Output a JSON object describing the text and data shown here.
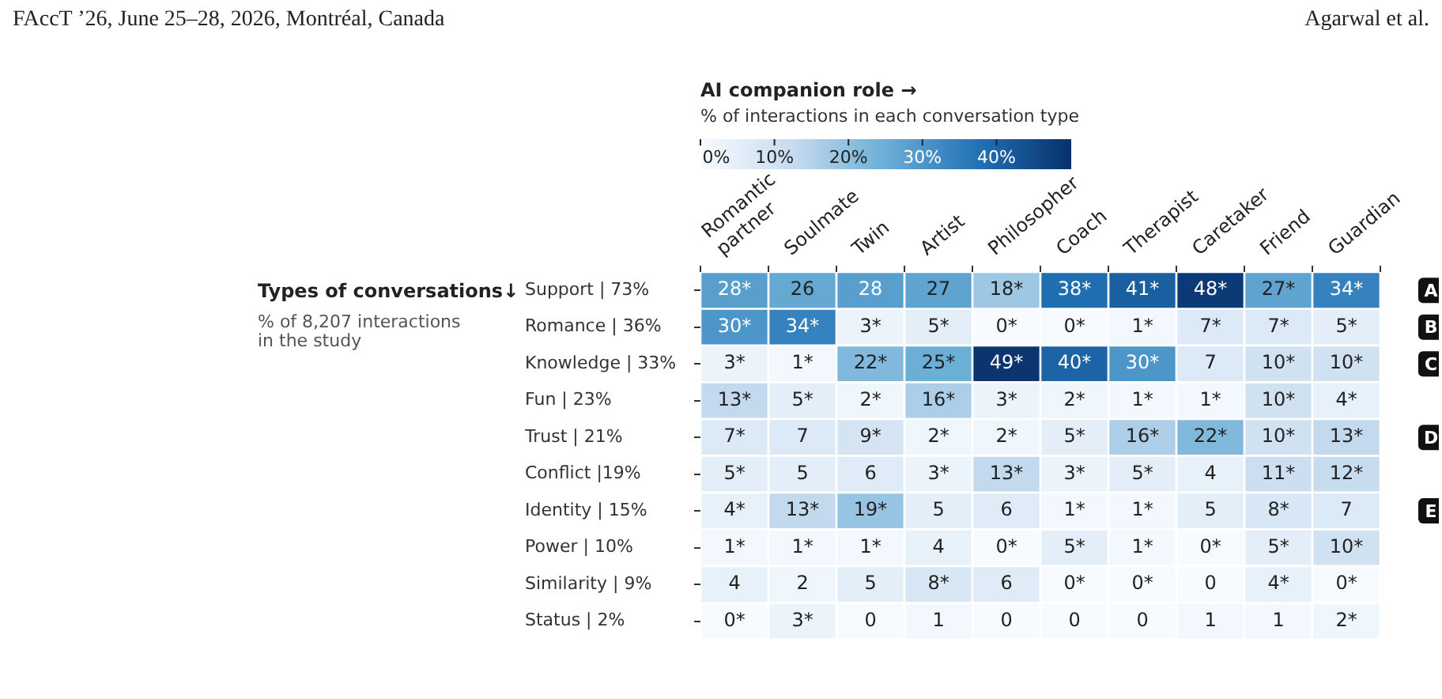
{
  "chart_data": {
    "type": "heatmap",
    "title": "AI companion role →",
    "clabel": "% of interactions in each conversation type",
    "ylabel": "Types of conversations↓",
    "annotations": [
      "FAccT ’26, June 25–28, 2026, Montréal, Canada",
      "Agarwal et al.",
      "% of 8,207 interactions in the study",
      "A",
      "B",
      "C",
      "D",
      "E"
    ],
    "categories": [
      "Romantic partner",
      "Soulmate",
      "Twin",
      "Artist",
      "Philosopher",
      "Coach",
      "Therapist",
      "Caretaker",
      "Friend",
      "Guardian"
    ],
    "y_categories": [
      "Support | 73%",
      "Romance | 36%",
      "Knowledge | 33%",
      "Fun | 23%",
      "Trust | 21%",
      "Conflict |19%",
      "Identity | 15%",
      "Power | 10%",
      "Similarity | 9%",
      "Status | 2%"
    ],
    "cells": [
      [
        28,
        26,
        28,
        27,
        18,
        38,
        41,
        48,
        27,
        34
      ],
      [
        30,
        34,
        3,
        5,
        0,
        0,
        1,
        7,
        7,
        5
      ],
      [
        3,
        1,
        22,
        25,
        49,
        40,
        30,
        7,
        10,
        10
      ],
      [
        13,
        5,
        2,
        16,
        3,
        2,
        1,
        1,
        10,
        4
      ],
      [
        7,
        7,
        9,
        2,
        2,
        5,
        16,
        22,
        10,
        13
      ],
      [
        5,
        5,
        6,
        3,
        13,
        3,
        5,
        4,
        11,
        12
      ],
      [
        4,
        13,
        19,
        5,
        6,
        1,
        1,
        5,
        8,
        7
      ],
      [
        1,
        1,
        1,
        4,
        0,
        5,
        1,
        0,
        5,
        10
      ],
      [
        4,
        2,
        5,
        8,
        6,
        0,
        0,
        0,
        4,
        0
      ],
      [
        0,
        3,
        0,
        1,
        0,
        0,
        0,
        1,
        1,
        2
      ]
    ],
    "cell_labels": [
      [
        "28*",
        "26",
        "28",
        "27",
        "18*",
        "38*",
        "41*",
        "48*",
        "27*",
        "34*"
      ],
      [
        "30*",
        "34*",
        "3*",
        "5*",
        "0*",
        "0*",
        "1*",
        "7*",
        "7*",
        "5*"
      ],
      [
        "3*",
        "1*",
        "22*",
        "25*",
        "49*",
        "40*",
        "30*",
        "7",
        "10*",
        "10*"
      ],
      [
        "13*",
        "5*",
        "2*",
        "16*",
        "3*",
        "2*",
        "1*",
        "1*",
        "10*",
        "4*"
      ],
      [
        "7*",
        "7",
        "9*",
        "2*",
        "2*",
        "5*",
        "16*",
        "22*",
        "10*",
        "13*"
      ],
      [
        "5*",
        "5",
        "6",
        "3*",
        "13*",
        "3*",
        "5*",
        "4",
        "11*",
        "12*"
      ],
      [
        "4*",
        "13*",
        "19*",
        "5",
        "6",
        "1*",
        "1*",
        "5",
        "8*",
        "7"
      ],
      [
        "1*",
        "1*",
        "1*",
        "4",
        "0*",
        "5*",
        "1*",
        "0*",
        "5*",
        "10*"
      ],
      [
        "4",
        "2",
        "5",
        "8*",
        "6",
        "0*",
        "0*",
        "0",
        "4*",
        "0*"
      ],
      [
        "0*",
        "3*",
        "0",
        "1",
        "0",
        "0",
        "0",
        "1",
        "1",
        "2*"
      ]
    ],
    "clim": [
      0,
      50
    ],
    "cticks": [
      {
        "value": 0,
        "label": "0%"
      },
      {
        "value": 10,
        "label": "10%"
      },
      {
        "value": 20,
        "label": "20%"
      },
      {
        "value": 30,
        "label": "30%"
      },
      {
        "value": 40,
        "label": "40%"
      }
    ]
  }
}
